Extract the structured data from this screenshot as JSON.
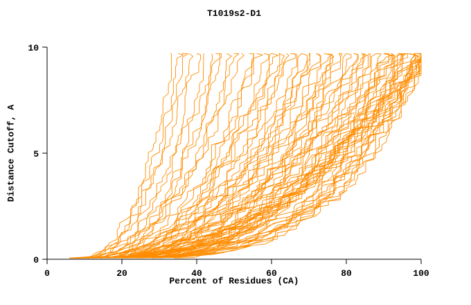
{
  "chart_data": {
    "type": "line",
    "title": "T1019s2-D1",
    "xlabel": "Percent of Residues (CA)",
    "ylabel": "Distance Cutoff, A",
    "xlim": [
      0,
      100
    ],
    "ylim": [
      0,
      10
    ],
    "xticks": [
      0,
      20,
      40,
      60,
      80,
      100
    ],
    "yticks": [
      0,
      5,
      10
    ],
    "grid": false,
    "legend": "none",
    "line_color": "#ff8c00",
    "axis_color": "#000000",
    "curve_y_max": 9.7,
    "curve_fields": "x_at_bottom, x_at_top, shape_exponent, seed",
    "curves": [
      [
        7,
        33,
        2.6,
        11
      ],
      [
        8,
        35,
        2.4,
        12
      ],
      [
        6,
        36,
        2.8,
        13
      ],
      [
        9,
        38,
        2.2,
        14
      ],
      [
        7,
        40,
        2.7,
        15
      ],
      [
        10,
        42,
        2.3,
        16
      ],
      [
        8,
        44,
        2.6,
        17
      ],
      [
        6,
        45,
        3.0,
        18
      ],
      [
        11,
        46,
        2.2,
        19
      ],
      [
        7,
        48,
        2.8,
        20
      ],
      [
        9,
        50,
        2.5,
        21
      ],
      [
        12,
        52,
        2.1,
        22
      ],
      [
        8,
        54,
        2.7,
        23
      ],
      [
        6,
        55,
        3.1,
        24
      ],
      [
        10,
        56,
        2.4,
        25
      ],
      [
        7,
        58,
        2.9,
        26
      ],
      [
        13,
        60,
        2.2,
        27
      ],
      [
        9,
        60,
        2.6,
        28
      ],
      [
        6,
        62,
        3.2,
        29
      ],
      [
        11,
        62,
        2.3,
        30
      ],
      [
        8,
        64,
        2.8,
        31
      ],
      [
        14,
        65,
        2.1,
        32
      ],
      [
        7,
        66,
        3.0,
        33
      ],
      [
        10,
        68,
        2.5,
        34
      ],
      [
        6,
        68,
        3.3,
        35
      ],
      [
        12,
        70,
        2.2,
        36
      ],
      [
        8,
        70,
        2.9,
        37
      ],
      [
        15,
        72,
        2.0,
        38
      ],
      [
        7,
        72,
        3.1,
        39
      ],
      [
        9,
        74,
        2.6,
        40
      ],
      [
        6,
        75,
        3.4,
        41
      ],
      [
        11,
        76,
        2.3,
        42
      ],
      [
        8,
        76,
        3.0,
        43
      ],
      [
        16,
        78,
        2.0,
        44
      ],
      [
        7,
        78,
        3.2,
        45
      ],
      [
        10,
        80,
        2.5,
        46
      ],
      [
        6,
        80,
        3.5,
        47
      ],
      [
        13,
        82,
        2.2,
        48
      ],
      [
        8,
        82,
        3.0,
        49
      ],
      [
        18,
        84,
        1.9,
        50
      ],
      [
        7,
        84,
        3.3,
        51
      ],
      [
        9,
        85,
        2.7,
        52
      ],
      [
        6,
        86,
        3.6,
        53
      ],
      [
        12,
        86,
        2.3,
        54
      ],
      [
        8,
        88,
        3.1,
        55
      ],
      [
        20,
        88,
        1.8,
        56
      ],
      [
        7,
        90,
        3.4,
        57
      ],
      [
        10,
        90,
        2.6,
        58
      ],
      [
        6,
        90,
        3.7,
        59
      ],
      [
        14,
        92,
        2.2,
        60
      ],
      [
        8,
        92,
        3.2,
        61
      ],
      [
        22,
        92,
        1.8,
        62
      ],
      [
        7,
        94,
        3.5,
        63
      ],
      [
        10,
        94,
        2.7,
        64
      ],
      [
        6,
        94,
        3.8,
        65
      ],
      [
        16,
        95,
        2.1,
        66
      ],
      [
        8,
        95,
        3.3,
        67
      ],
      [
        25,
        96,
        1.7,
        68
      ],
      [
        7,
        96,
        3.6,
        69
      ],
      [
        11,
        96,
        2.6,
        70
      ],
      [
        6,
        97,
        3.9,
        71
      ],
      [
        18,
        97,
        2.0,
        72
      ],
      [
        8,
        98,
        3.4,
        73
      ],
      [
        28,
        98,
        1.7,
        74
      ],
      [
        7,
        98,
        3.7,
        75
      ],
      [
        12,
        99,
        2.5,
        76
      ],
      [
        6,
        99,
        4.0,
        77
      ],
      [
        20,
        100,
        1.9,
        78
      ],
      [
        8,
        100,
        3.5,
        79
      ],
      [
        30,
        100,
        1.6,
        80
      ],
      [
        7,
        100,
        3.8,
        81
      ],
      [
        14,
        100,
        2.4,
        82
      ],
      [
        6,
        100,
        4.1,
        83
      ],
      [
        24,
        100,
        1.8,
        84
      ],
      [
        9,
        100,
        3.3,
        85
      ],
      [
        34,
        100,
        1.6,
        86
      ],
      [
        7,
        100,
        4.0,
        87
      ],
      [
        16,
        100,
        2.3,
        88
      ]
    ]
  }
}
